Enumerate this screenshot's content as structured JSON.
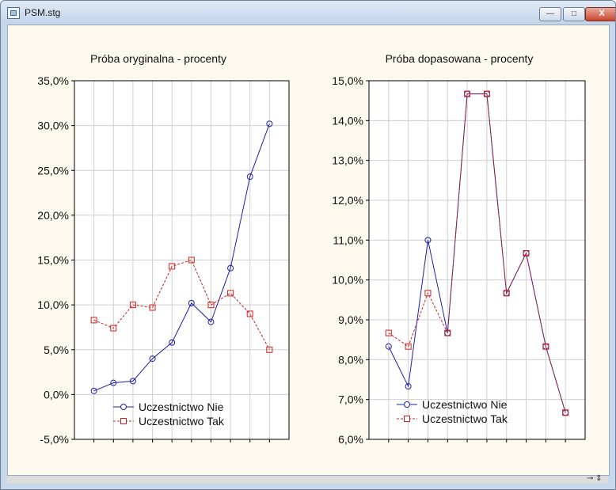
{
  "window": {
    "title": "PSM.stg",
    "controls": {
      "minimize": "—",
      "maximize": "□",
      "close": "X"
    },
    "status_icon": "⊸ ⇕"
  },
  "chart_data": [
    {
      "type": "line",
      "title": "Próba oryginalna - procenty",
      "xlabel": "",
      "ylabel": "",
      "ylim": [
        -5,
        35
      ],
      "yticks": [
        -5,
        0,
        5,
        10,
        15,
        20,
        25,
        30,
        35
      ],
      "ytick_labels": [
        "-5,0%",
        "0,0%",
        "5,0%",
        "10,0%",
        "15,0%",
        "20,0%",
        "25,0%",
        "30,0%",
        "35,0%"
      ],
      "x": [
        1,
        2,
        3,
        4,
        5,
        6,
        7,
        8,
        9,
        10
      ],
      "grid": true,
      "legend_position": "bottom-right",
      "series": [
        {
          "name": "Uczestnictwo Nie",
          "color": "#1f1fa8",
          "marker": "circle",
          "linestyle": "solid",
          "values": [
            0.4,
            1.3,
            1.5,
            4.0,
            5.8,
            10.2,
            8.1,
            14.1,
            24.3,
            30.2
          ]
        },
        {
          "name": "Uczestnictwo Tak",
          "color": "#cc2020",
          "marker": "square",
          "linestyle": "dashed",
          "values": [
            8.3,
            7.4,
            10.0,
            9.7,
            14.3,
            15.0,
            10.0,
            11.3,
            9.0,
            5.0
          ]
        }
      ]
    },
    {
      "type": "line",
      "title": "Próba dopasowana - procenty",
      "xlabel": "",
      "ylabel": "",
      "ylim": [
        6,
        15
      ],
      "yticks": [
        6,
        7,
        8,
        9,
        10,
        11,
        12,
        13,
        14,
        15
      ],
      "ytick_labels": [
        "6,0%",
        "7,0%",
        "8,0%",
        "9,0%",
        "10,0%",
        "11,0%",
        "12,0%",
        "13,0%",
        "14,0%",
        "15,0%"
      ],
      "x": [
        1,
        2,
        3,
        4,
        5,
        6,
        7,
        8,
        9,
        10
      ],
      "grid": true,
      "legend_position": "bottom-right",
      "series": [
        {
          "name": "Uczestnictwo Nie",
          "color": "#1f1fa8",
          "marker": "circle",
          "linestyle": "solid",
          "values": [
            8.33,
            7.33,
            11.0,
            8.67,
            14.67,
            14.67,
            9.67,
            10.67,
            8.33,
            6.67
          ]
        },
        {
          "name": "Uczestnictwo Tak",
          "color": "#cc2020",
          "marker": "square",
          "linestyle": "dashed",
          "values": [
            8.67,
            8.33,
            9.67,
            8.67,
            14.67,
            14.67,
            9.67,
            10.67,
            8.33,
            6.67
          ]
        }
      ]
    }
  ]
}
